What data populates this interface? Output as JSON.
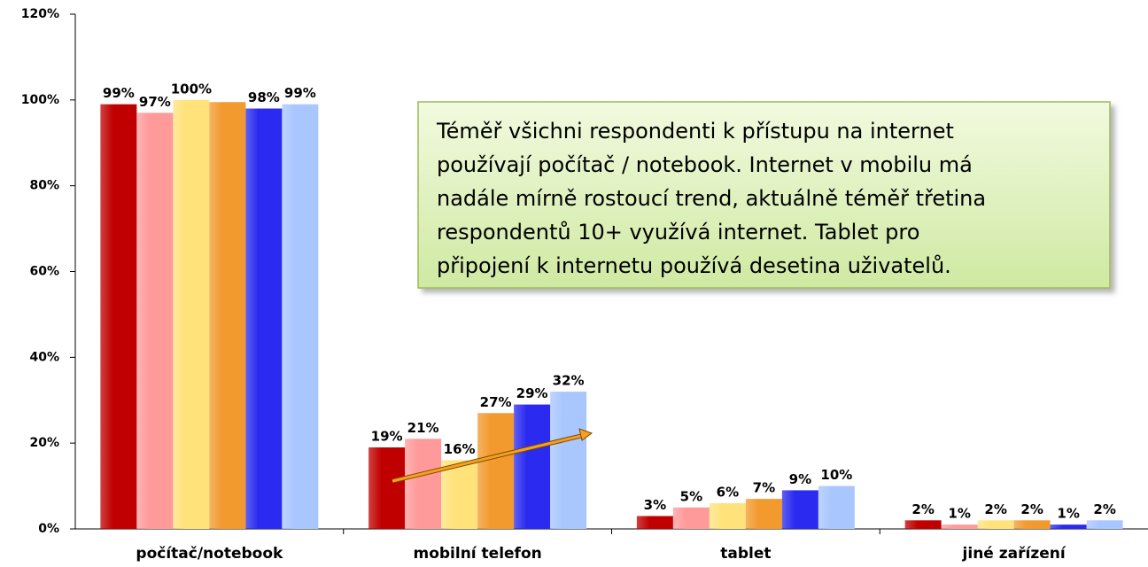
{
  "chart_data": {
    "type": "bar",
    "categories": [
      "počítač/notebook",
      "mobilní telefon",
      "tablet",
      "jiné zařízení"
    ],
    "series": [
      {
        "color": "#c00000",
        "values": [
          99,
          19,
          3,
          2
        ],
        "value_labels": [
          "99%",
          "19%",
          "3%",
          "2%"
        ]
      },
      {
        "color": "#ff9a9a",
        "values": [
          97,
          21,
          5,
          1
        ],
        "value_labels": [
          "97%",
          "21%",
          "5%",
          "1%"
        ]
      },
      {
        "color": "#ffe27a",
        "values": [
          100,
          16,
          6,
          2
        ],
        "value_labels": [
          "100%",
          "16%",
          "6%",
          "2%"
        ]
      },
      {
        "color": "#f29a2e",
        "values": [
          99.5,
          27,
          7,
          2
        ],
        "value_labels": [
          null,
          "27%",
          "7%",
          "2%"
        ]
      },
      {
        "color": "#2a2af0",
        "values": [
          98,
          29,
          9,
          1
        ],
        "value_labels": [
          "98%",
          "29%",
          "9%",
          "1%"
        ]
      },
      {
        "color": "#a9c6ff",
        "values": [
          99,
          32,
          10,
          2
        ],
        "value_labels": [
          "99%",
          "32%",
          "10%",
          "2%"
        ]
      }
    ],
    "ylim": [
      0,
      120
    ],
    "yticks": [
      {
        "value": 0,
        "label": "0%"
      },
      {
        "value": 20,
        "label": "20%"
      },
      {
        "value": 40,
        "label": "40%"
      },
      {
        "value": 60,
        "label": "60%"
      },
      {
        "value": 80,
        "label": "80%"
      },
      {
        "value": 100,
        "label": "100%"
      },
      {
        "value": 120,
        "label": "120%"
      }
    ],
    "annotation": [
      "Téměř všichni respondenti k přístupu na internet",
      "používají počítač / notebook. Internet v mobilu má",
      "nadále mírně rostoucí trend, aktuálně téměř třetina",
      "respondentů 10+ využívá internet. Tablet pro",
      "připojení k internetu používá desetina uživatelů."
    ]
  }
}
